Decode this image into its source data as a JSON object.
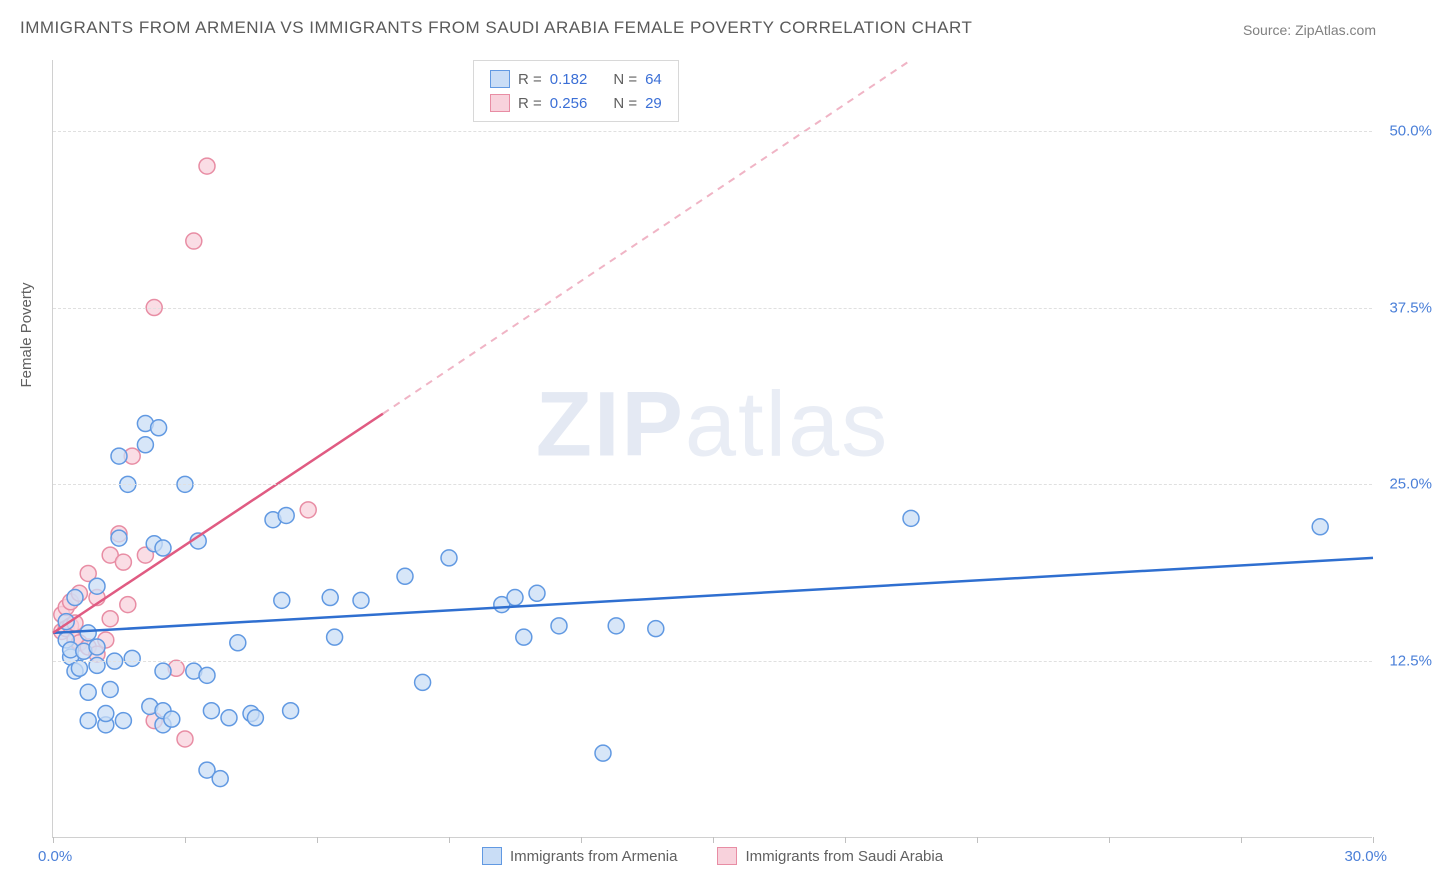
{
  "title": "IMMIGRANTS FROM ARMENIA VS IMMIGRANTS FROM SAUDI ARABIA FEMALE POVERTY CORRELATION CHART",
  "source": "Source: ZipAtlas.com",
  "watermark_bold": "ZIP",
  "watermark_light": "atlas",
  "y_axis_title": "Female Poverty",
  "chart": {
    "type": "scatter-correlation",
    "xlim": [
      0,
      30
    ],
    "ylim": [
      0,
      55
    ],
    "x_tick_marks": [
      0,
      3,
      6,
      9,
      12,
      15,
      18,
      21,
      24,
      27,
      30
    ],
    "x_labels": {
      "min": "0.0%",
      "max": "30.0%"
    },
    "y_gridlines": [
      {
        "value": 12.5,
        "label": "12.5%"
      },
      {
        "value": 25.0,
        "label": "25.0%"
      },
      {
        "value": 37.5,
        "label": "37.5%"
      },
      {
        "value": 50.0,
        "label": "50.0%"
      }
    ],
    "background_color": "#ffffff",
    "grid_color": "#e0e0e0",
    "marker_radius": 8,
    "marker_stroke_width": 1.5,
    "series": [
      {
        "id": "armenia",
        "label": "Immigrants from Armenia",
        "fill": "#c9ddf6",
        "stroke": "#6199e2",
        "R": "0.182",
        "N": "64",
        "trend": {
          "x1": 0,
          "y1": 14.5,
          "x2": 30,
          "y2": 19.8,
          "color": "#2f6fd0",
          "width": 2.5,
          "dash": "none"
        },
        "points": [
          [
            0.3,
            14.0
          ],
          [
            0.3,
            15.3
          ],
          [
            0.4,
            12.8
          ],
          [
            0.4,
            13.3
          ],
          [
            0.5,
            11.8
          ],
          [
            0.5,
            17.0
          ],
          [
            0.6,
            12.0
          ],
          [
            0.7,
            13.2
          ],
          [
            0.8,
            10.3
          ],
          [
            0.8,
            8.3
          ],
          [
            0.8,
            14.5
          ],
          [
            1.0,
            12.2
          ],
          [
            1.0,
            13.5
          ],
          [
            1.0,
            17.8
          ],
          [
            1.2,
            8.0
          ],
          [
            1.2,
            8.8
          ],
          [
            1.3,
            10.5
          ],
          [
            1.4,
            12.5
          ],
          [
            1.5,
            21.2
          ],
          [
            1.5,
            27.0
          ],
          [
            1.6,
            8.3
          ],
          [
            1.7,
            25.0
          ],
          [
            1.8,
            12.7
          ],
          [
            2.1,
            27.8
          ],
          [
            2.1,
            29.3
          ],
          [
            2.2,
            9.3
          ],
          [
            2.3,
            20.8
          ],
          [
            2.4,
            29.0
          ],
          [
            2.5,
            8.0
          ],
          [
            2.5,
            9.0
          ],
          [
            2.5,
            20.5
          ],
          [
            2.5,
            11.8
          ],
          [
            2.7,
            8.4
          ],
          [
            3.0,
            25.0
          ],
          [
            3.2,
            11.8
          ],
          [
            3.3,
            21.0
          ],
          [
            3.5,
            4.8
          ],
          [
            3.5,
            11.5
          ],
          [
            3.6,
            9.0
          ],
          [
            3.8,
            4.2
          ],
          [
            4.0,
            8.5
          ],
          [
            4.2,
            13.8
          ],
          [
            4.5,
            8.8
          ],
          [
            4.6,
            8.5
          ],
          [
            5.0,
            22.5
          ],
          [
            5.2,
            16.8
          ],
          [
            5.3,
            22.8
          ],
          [
            5.4,
            9.0
          ],
          [
            6.3,
            17.0
          ],
          [
            6.4,
            14.2
          ],
          [
            7.0,
            16.8
          ],
          [
            8.0,
            18.5
          ],
          [
            8.4,
            11.0
          ],
          [
            9.0,
            19.8
          ],
          [
            10.2,
            16.5
          ],
          [
            10.5,
            17.0
          ],
          [
            10.7,
            14.2
          ],
          [
            11.0,
            17.3
          ],
          [
            11.5,
            15.0
          ],
          [
            12.5,
            6.0
          ],
          [
            12.8,
            15.0
          ],
          [
            13.7,
            14.8
          ],
          [
            19.5,
            22.6
          ],
          [
            28.8,
            22.0
          ]
        ]
      },
      {
        "id": "saudi",
        "label": "Immigrants from Saudi Arabia",
        "fill": "#f8d2dc",
        "stroke": "#e88da4",
        "R": "0.256",
        "N": "29",
        "trend_solid": {
          "x1": 0,
          "y1": 14.5,
          "x2": 7.5,
          "y2": 30.0,
          "color": "#e05b82",
          "width": 2.5
        },
        "trend_dash": {
          "x1": 7.5,
          "y1": 30.0,
          "x2": 19.5,
          "y2": 55.0,
          "color": "#f0b4c5",
          "width": 2,
          "dash": "7,6"
        },
        "points": [
          [
            0.2,
            15.8
          ],
          [
            0.2,
            14.6
          ],
          [
            0.3,
            16.3
          ],
          [
            0.3,
            14.8
          ],
          [
            0.4,
            15.0
          ],
          [
            0.4,
            16.7
          ],
          [
            0.5,
            14.0
          ],
          [
            0.5,
            15.2
          ],
          [
            0.6,
            13.8
          ],
          [
            0.6,
            17.3
          ],
          [
            0.8,
            13.5
          ],
          [
            0.8,
            18.7
          ],
          [
            1.0,
            13.0
          ],
          [
            1.0,
            17.0
          ],
          [
            1.2,
            14.0
          ],
          [
            1.3,
            15.5
          ],
          [
            1.3,
            20.0
          ],
          [
            1.5,
            21.5
          ],
          [
            1.6,
            19.5
          ],
          [
            1.7,
            16.5
          ],
          [
            1.8,
            27.0
          ],
          [
            2.1,
            20.0
          ],
          [
            2.3,
            37.5
          ],
          [
            2.3,
            8.3
          ],
          [
            2.8,
            12.0
          ],
          [
            3.0,
            7.0
          ],
          [
            3.2,
            42.2
          ],
          [
            3.5,
            47.5
          ],
          [
            5.8,
            23.2
          ]
        ]
      }
    ],
    "legend": {
      "R_label": "R =",
      "N_label": "N ="
    },
    "bottom_legend": true
  }
}
